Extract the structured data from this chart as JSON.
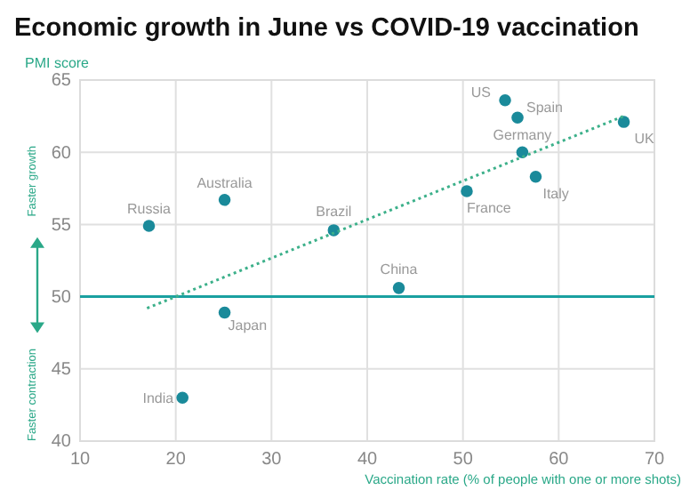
{
  "chart_data": {
    "type": "scatter",
    "title": "Economic growth in June vs COVID-19 vaccination",
    "ylabel": "PMI score",
    "xlabel": "Vaccination rate (% of people with one or more shots)",
    "series": [
      {
        "type": "scatter",
        "color": "#1a8a9a",
        "marker": "circle",
        "x": [
          54.4,
          55.7,
          66.8,
          56.2,
          57.6,
          50.4,
          25.1,
          17.2,
          36.5,
          43.3,
          25.1,
          20.7
        ],
        "values": [
          63.6,
          62.4,
          62.1,
          60.0,
          58.3,
          57.3,
          56.7,
          54.9,
          54.6,
          50.6,
          48.9,
          43.0
        ]
      },
      {
        "type": "line",
        "color": "#3cb08a",
        "line_style": "dotted",
        "marker": "none",
        "x": [
          17,
          66.8
        ],
        "values": [
          49.2,
          62.5
        ]
      }
    ],
    "annotations": [
      {
        "text": "US",
        "x": 54.4,
        "y": 63.6
      },
      {
        "text": "Spain",
        "x": 55.7,
        "y": 62.4
      },
      {
        "text": "UK",
        "x": 66.8,
        "y": 62.1
      },
      {
        "text": "Germany",
        "x": 56.2,
        "y": 60.0
      },
      {
        "text": "Italy",
        "x": 57.6,
        "y": 58.3
      },
      {
        "text": "France",
        "x": 50.4,
        "y": 57.3
      },
      {
        "text": "Australia",
        "x": 25.1,
        "y": 56.7
      },
      {
        "text": "Russia",
        "x": 17.2,
        "y": 54.9
      },
      {
        "text": "Brazil",
        "x": 36.5,
        "y": 54.6
      },
      {
        "text": "China",
        "x": 43.3,
        "y": 50.6
      },
      {
        "text": "Japan",
        "x": 25.1,
        "y": 48.9
      },
      {
        "text": "India",
        "x": 20.7,
        "y": 43.0
      },
      "Faster growth",
      "Faster contraction"
    ],
    "ref_lines": [
      {
        "axis": "y",
        "value": 50,
        "color": "#1aa0a0"
      }
    ],
    "xlim": [
      10,
      70
    ],
    "xticks": [
      10,
      20,
      30,
      40,
      50,
      60,
      70
    ],
    "ylim": [
      40,
      65
    ],
    "yticks": [
      40,
      45,
      50,
      55,
      60,
      65
    ],
    "grid": true
  }
}
